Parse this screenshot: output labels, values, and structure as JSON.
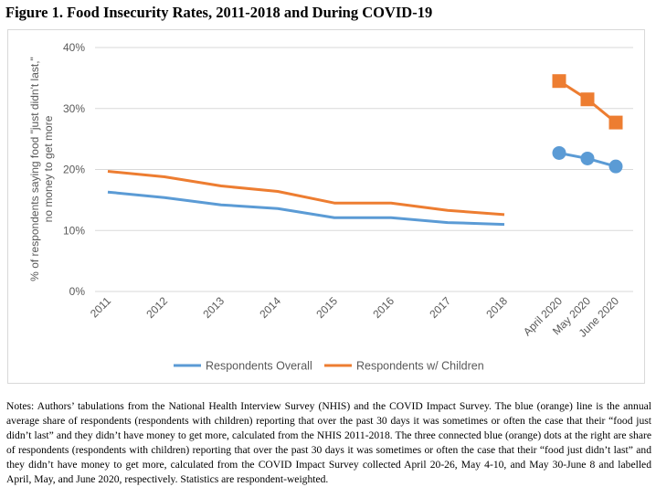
{
  "title": "Figure 1. Food Insecurity Rates, 2011-2018 and During COVID-19",
  "notes": "Notes: Authors’ tabulations from the National Health Interview Survey (NHIS) and the COVID Impact Survey. The blue (orange) line is the annual average share of respondents (respondents with children) reporting that over the past 30 days it was sometimes or often the case that their “food just didn’t last” and they didn’t have money to get more, calculated from the NHIS 2011-2018. The three connected blue (orange) dots at the right are share of respondents (respondents with children) reporting that over the past 30 days it was sometimes or often the case that their “food just didn’t last” and they didn’t have money to get more, calculated from the COVID Impact Survey collected April 20-26, May 4-10, and May 30-June 8 and labelled April, May, and June 2020, respectively. Statistics are respondent-weighted.",
  "chart_data": {
    "type": "line",
    "title": "Figure 1. Food Insecurity Rates, 2011-2018 and During COVID-19",
    "ylabel_lines": [
      "% of respondents saying food \"just didn't last,\"",
      "no money to get more"
    ],
    "xlabel": "",
    "categories": [
      "2011",
      "2012",
      "2013",
      "2014",
      "2015",
      "2016",
      "2017",
      "2018",
      "April 2020",
      "May 2020",
      "June 2020"
    ],
    "yticks": [
      "0%",
      "10%",
      "20%",
      "30%",
      "40%"
    ],
    "ylim": [
      0,
      40
    ],
    "grid": true,
    "legend": "bottom",
    "series": [
      {
        "name": "Respondents Overall",
        "color": "#5b9bd5",
        "annual": [
          16.3,
          15.4,
          14.2,
          13.6,
          12.1,
          12.1,
          11.3,
          11.0
        ],
        "covid": [
          22.7,
          21.8,
          20.5
        ],
        "covid_marker": "circle"
      },
      {
        "name": "Respondents w/ Children",
        "color": "#ed7d31",
        "annual": [
          19.7,
          18.8,
          17.3,
          16.4,
          14.5,
          14.5,
          13.3,
          12.6
        ],
        "covid": [
          34.5,
          31.5,
          27.7
        ],
        "covid_marker": "square"
      }
    ]
  }
}
